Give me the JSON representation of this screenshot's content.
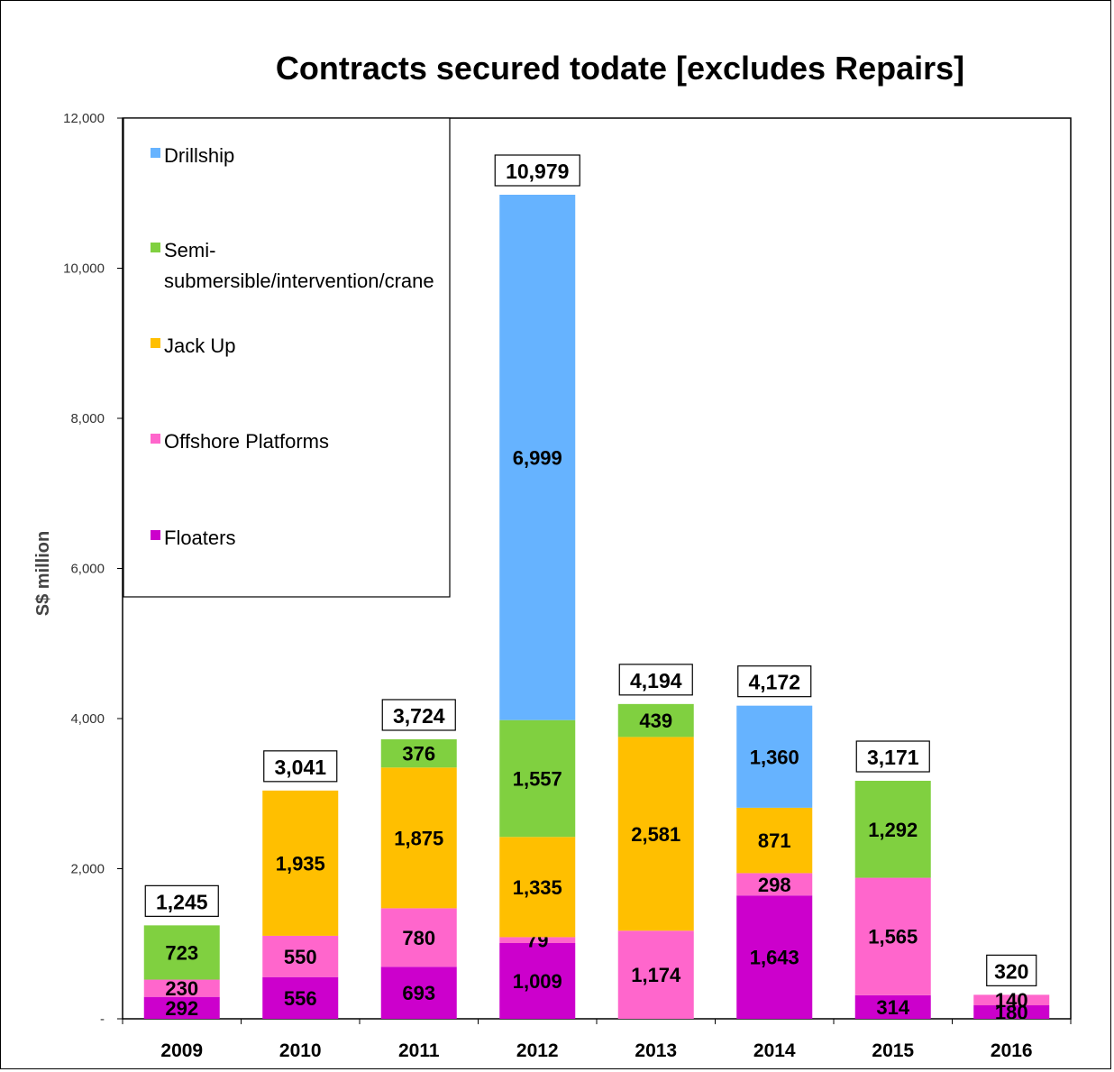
{
  "chart_data": {
    "type": "bar",
    "stacked": true,
    "title": "Contracts secured  todate [excludes Repairs]",
    "ylabel": "S$ million",
    "xlabel": "",
    "ylim": [
      0,
      12000
    ],
    "yticks": [
      "-",
      "2,000",
      "4,000",
      "6,000",
      "8,000",
      "10,000",
      "12,000"
    ],
    "categories": [
      "2009",
      "2010",
      "2011",
      "2012",
      "2013",
      "2014",
      "2015",
      "2016"
    ],
    "series": [
      {
        "name": "Floaters",
        "color": "#cc00cc",
        "values": [
          292,
          556,
          693,
          1009,
          0,
          1643,
          314,
          180
        ],
        "labels": [
          "292",
          "556",
          "693",
          "1,009",
          "",
          "1,643",
          "314",
          "180"
        ]
      },
      {
        "name": "Offshore Platforms",
        "color": "#ff66cc",
        "values": [
          230,
          550,
          780,
          79,
          1174,
          298,
          1565,
          140
        ],
        "labels": [
          "230",
          "550",
          "780",
          "79",
          "1,174",
          "298",
          "1,565",
          "140"
        ]
      },
      {
        "name": "Jack Up",
        "color": "#ffbf00",
        "values": [
          0,
          1935,
          1875,
          1335,
          2581,
          871,
          0,
          0
        ],
        "labels": [
          "",
          "1,935",
          "1,875",
          "1,335",
          "2,581",
          "871",
          "",
          ""
        ]
      },
      {
        "name": "Semi-submersible/intervention/crane",
        "color": "#80d040",
        "values": [
          723,
          0,
          376,
          1557,
          439,
          0,
          1292,
          0
        ],
        "labels": [
          "723",
          "",
          "376",
          "1,557",
          "439",
          "",
          "1,292",
          ""
        ]
      },
      {
        "name": "Drillship",
        "color": "#66b3ff",
        "values": [
          0,
          0,
          0,
          6999,
          0,
          1360,
          0,
          0
        ],
        "labels": [
          "",
          "",
          "",
          "6,999",
          "",
          "1,360",
          "",
          ""
        ]
      }
    ],
    "totals": [
      "1,245",
      "3,041",
      "3,724",
      "10,979",
      "4,194",
      "4,172",
      "3,171",
      "320"
    ],
    "legend": {
      "position": "top-left",
      "items": [
        {
          "label": "Drillship",
          "color": "#66b3ff"
        },
        {
          "label": "Semi-",
          "label2": "submersible/intervention/crane",
          "color": "#80d040"
        },
        {
          "label": "Jack Up",
          "color": "#ffbf00"
        },
        {
          "label": "Offshore Platforms",
          "color": "#ff66cc"
        },
        {
          "label": "Floaters",
          "color": "#cc00cc"
        }
      ]
    },
    "grid": false
  }
}
